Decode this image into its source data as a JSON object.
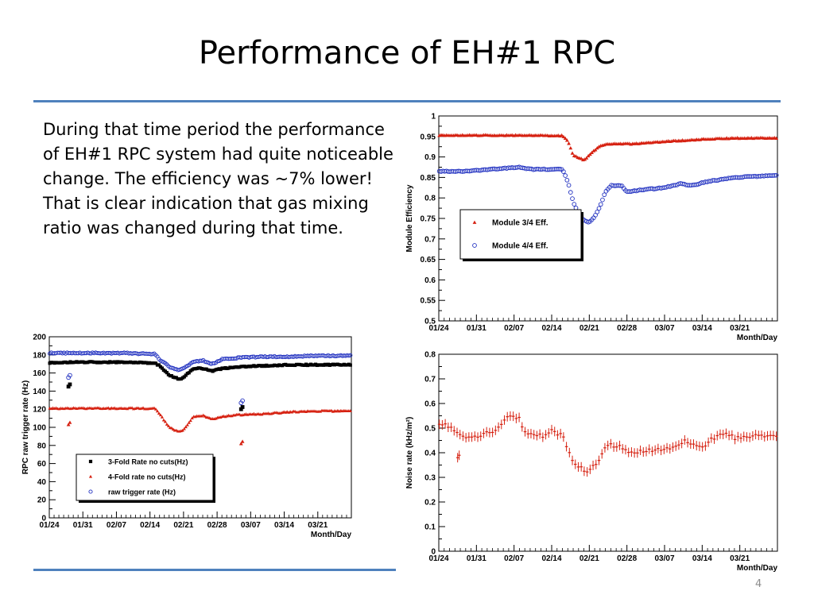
{
  "slide": {
    "title": "Performance of EH#1 RPC",
    "body": "During that time period the performance of EH#1 RPC system had quite noticeable change. The efficiency was ~7% lower! That is clear indication that gas mixing ratio was changed during that time.",
    "page_number": "4",
    "rule_color": "#4f81bd"
  },
  "chart_data": [
    {
      "id": "efficiency",
      "type": "scatter",
      "title": "",
      "xlabel": "Month/Day",
      "ylabel": "Module Efficiency",
      "x_tick_labels": [
        "01/24",
        "01/31",
        "02/07",
        "02/14",
        "02/21",
        "02/28",
        "03/07",
        "03/14",
        "03/21"
      ],
      "xlim": [
        0,
        63
      ],
      "ylim": [
        0.5,
        1.0
      ],
      "y_tick_labels": [
        "0.5",
        "0.55",
        "0.6",
        "0.65",
        "0.7",
        "0.75",
        "0.8",
        "0.85",
        "0.9",
        "0.95",
        "1"
      ],
      "y_ticks": [
        0.5,
        0.55,
        0.6,
        0.65,
        0.7,
        0.75,
        0.8,
        0.85,
        0.9,
        0.95,
        1.0
      ],
      "grid": false,
      "legend_position": "middle-left",
      "series": [
        {
          "name": "Module 3/4 Eff.",
          "marker": "triangle",
          "color": "#d62010",
          "points": [
            [
              -1,
              0.953
            ],
            [
              5,
              0.953
            ],
            [
              10,
              0.953
            ],
            [
              15,
              0.953
            ],
            [
              23,
              0.952
            ],
            [
              24,
              0.94
            ],
            [
              25,
              0.905
            ],
            [
              27,
              0.892
            ],
            [
              28,
              0.905
            ],
            [
              30,
              0.928
            ],
            [
              32,
              0.932
            ],
            [
              36,
              0.932
            ],
            [
              40,
              0.936
            ],
            [
              45,
              0.94
            ],
            [
              50,
              0.944
            ],
            [
              55,
              0.946
            ],
            [
              63,
              0.946
            ]
          ]
        },
        {
          "name": "Module 4/4 Eff.",
          "marker": "circle",
          "color": "#2030c0",
          "points": [
            [
              -1,
              0.865
            ],
            [
              5,
              0.865
            ],
            [
              10,
              0.87
            ],
            [
              15,
              0.875
            ],
            [
              17,
              0.87
            ],
            [
              20,
              0.87
            ],
            [
              23,
              0.87
            ],
            [
              24,
              0.84
            ],
            [
              25,
              0.79
            ],
            [
              26,
              0.76
            ],
            [
              27,
              0.745
            ],
            [
              28,
              0.74
            ],
            [
              29,
              0.755
            ],
            [
              30,
              0.78
            ],
            [
              31,
              0.815
            ],
            [
              32,
              0.83
            ],
            [
              34,
              0.83
            ],
            [
              35,
              0.815
            ],
            [
              38,
              0.82
            ],
            [
              42,
              0.825
            ],
            [
              45,
              0.835
            ],
            [
              47,
              0.83
            ],
            [
              50,
              0.84
            ],
            [
              55,
              0.85
            ],
            [
              63,
              0.855
            ]
          ]
        }
      ]
    },
    {
      "id": "trigger-rate",
      "type": "scatter",
      "title": "",
      "xlabel": "Month/Day",
      "ylabel": "RPC raw trigger rate (Hz)",
      "x_tick_labels": [
        "01/24",
        "01/31",
        "02/07",
        "02/14",
        "02/21",
        "02/28",
        "03/07",
        "03/14",
        "03/21"
      ],
      "xlim": [
        0,
        63
      ],
      "ylim": [
        0,
        200
      ],
      "y_tick_labels": [
        "0",
        "20",
        "40",
        "60",
        "80",
        "100",
        "120",
        "140",
        "160",
        "180",
        "200"
      ],
      "y_ticks": [
        0,
        20,
        40,
        60,
        80,
        100,
        120,
        140,
        160,
        180,
        200
      ],
      "grid": false,
      "legend_position": "bottom-left",
      "series": [
        {
          "name": "3-Fold Rate no cuts(Hz)",
          "marker": "square",
          "color": "#000000",
          "points": [
            [
              -1,
              171
            ],
            [
              5,
              172
            ],
            [
              10,
              172
            ],
            [
              15,
              172
            ],
            [
              22,
              171
            ],
            [
              23,
              168
            ],
            [
              25,
              158
            ],
            [
              27,
              153
            ],
            [
              28,
              155
            ],
            [
              30,
              165
            ],
            [
              32,
              165
            ],
            [
              34,
              162
            ],
            [
              36,
              165
            ],
            [
              40,
              167
            ],
            [
              45,
              168
            ],
            [
              50,
              169
            ],
            [
              55,
              169
            ],
            [
              63,
              169
            ]
          ]
        },
        {
          "name": "4-Fold rate no cuts(Hz)",
          "marker": "triangle",
          "color": "#d62010",
          "points": [
            [
              -1,
              121
            ],
            [
              5,
              121
            ],
            [
              10,
              121
            ],
            [
              15,
              121
            ],
            [
              22,
              121
            ],
            [
              23,
              115
            ],
            [
              25,
              100
            ],
            [
              27,
              95
            ],
            [
              28,
              97
            ],
            [
              30,
              112
            ],
            [
              32,
              113
            ],
            [
              34,
              109
            ],
            [
              36,
              112
            ],
            [
              40,
              114
            ],
            [
              45,
              115
            ],
            [
              50,
              117
            ],
            [
              55,
              118
            ],
            [
              63,
              118
            ]
          ]
        },
        {
          "name": "raw trigger rate (Hz)",
          "marker": "circle",
          "color": "#2030c0",
          "points": [
            [
              -1,
              182
            ],
            [
              5,
              182
            ],
            [
              10,
              182
            ],
            [
              15,
              182
            ],
            [
              22,
              181
            ],
            [
              23,
              175
            ],
            [
              25,
              167
            ],
            [
              27,
              163
            ],
            [
              28,
              165
            ],
            [
              30,
              172
            ],
            [
              32,
              174
            ],
            [
              34,
              170
            ],
            [
              36,
              175
            ],
            [
              40,
              177
            ],
            [
              45,
              178
            ],
            [
              50,
              178
            ],
            [
              55,
              179
            ],
            [
              63,
              179
            ]
          ]
        }
      ],
      "outliers": [
        {
          "series": "3-Fold Rate no cuts(Hz)",
          "x": 4,
          "y": 145
        },
        {
          "series": "raw trigger rate (Hz)",
          "x": 4,
          "y": 155
        },
        {
          "series": "4-Fold rate no cuts(Hz)",
          "x": 4,
          "y": 103
        },
        {
          "series": "3-Fold Rate no cuts(Hz)",
          "x": 40,
          "y": 120
        },
        {
          "series": "raw trigger rate (Hz)",
          "x": 40,
          "y": 127
        },
        {
          "series": "4-Fold rate no cuts(Hz)",
          "x": 40,
          "y": 82
        }
      ]
    },
    {
      "id": "noise-rate",
      "type": "scatter",
      "title": "",
      "xlabel": "Month/Day",
      "ylabel": "Noise rate (kHz/m²)",
      "x_tick_labels": [
        "01/24",
        "01/31",
        "02/07",
        "02/14",
        "02/21",
        "02/28",
        "03/07",
        "03/14",
        "03/21"
      ],
      "xlim": [
        0,
        63
      ],
      "ylim": [
        0,
        0.8
      ],
      "y_tick_labels": [
        "0",
        "0.1",
        "0.2",
        "0.3",
        "0.4",
        "0.5",
        "0.6",
        "0.7",
        "0.8"
      ],
      "y_ticks": [
        0,
        0.1,
        0.2,
        0.3,
        0.4,
        0.5,
        0.6,
        0.7,
        0.8
      ],
      "grid": false,
      "legend_position": "none",
      "series": [
        {
          "name": "",
          "marker": "errorbar",
          "color": "#d62010",
          "points": [
            [
              -1,
              0.52
            ],
            [
              1,
              0.52
            ],
            [
              2,
              0.5
            ],
            [
              4,
              0.47
            ],
            [
              6,
              0.46
            ],
            [
              8,
              0.47
            ],
            [
              10,
              0.49
            ],
            [
              12,
              0.52
            ],
            [
              13,
              0.55
            ],
            [
              15,
              0.54
            ],
            [
              16,
              0.48
            ],
            [
              18,
              0.47
            ],
            [
              20,
              0.47
            ],
            [
              21,
              0.5
            ],
            [
              22,
              0.48
            ],
            [
              23,
              0.48
            ],
            [
              24,
              0.41
            ],
            [
              25,
              0.37
            ],
            [
              26,
              0.34
            ],
            [
              27,
              0.33
            ],
            [
              28,
              0.33
            ],
            [
              29,
              0.35
            ],
            [
              30,
              0.38
            ],
            [
              31,
              0.42
            ],
            [
              32,
              0.43
            ],
            [
              34,
              0.42
            ],
            [
              35,
              0.4
            ],
            [
              37,
              0.4
            ],
            [
              39,
              0.41
            ],
            [
              41,
              0.41
            ],
            [
              43,
              0.42
            ],
            [
              45,
              0.43
            ],
            [
              46,
              0.45
            ],
            [
              47,
              0.43
            ],
            [
              49,
              0.42
            ],
            [
              51,
              0.46
            ],
            [
              53,
              0.48
            ],
            [
              55,
              0.46
            ],
            [
              57,
              0.46
            ],
            [
              59,
              0.47
            ],
            [
              63,
              0.47
            ]
          ]
        }
      ],
      "outliers": [
        {
          "series": "",
          "x": 3.5,
          "y": 0.38
        }
      ]
    }
  ]
}
